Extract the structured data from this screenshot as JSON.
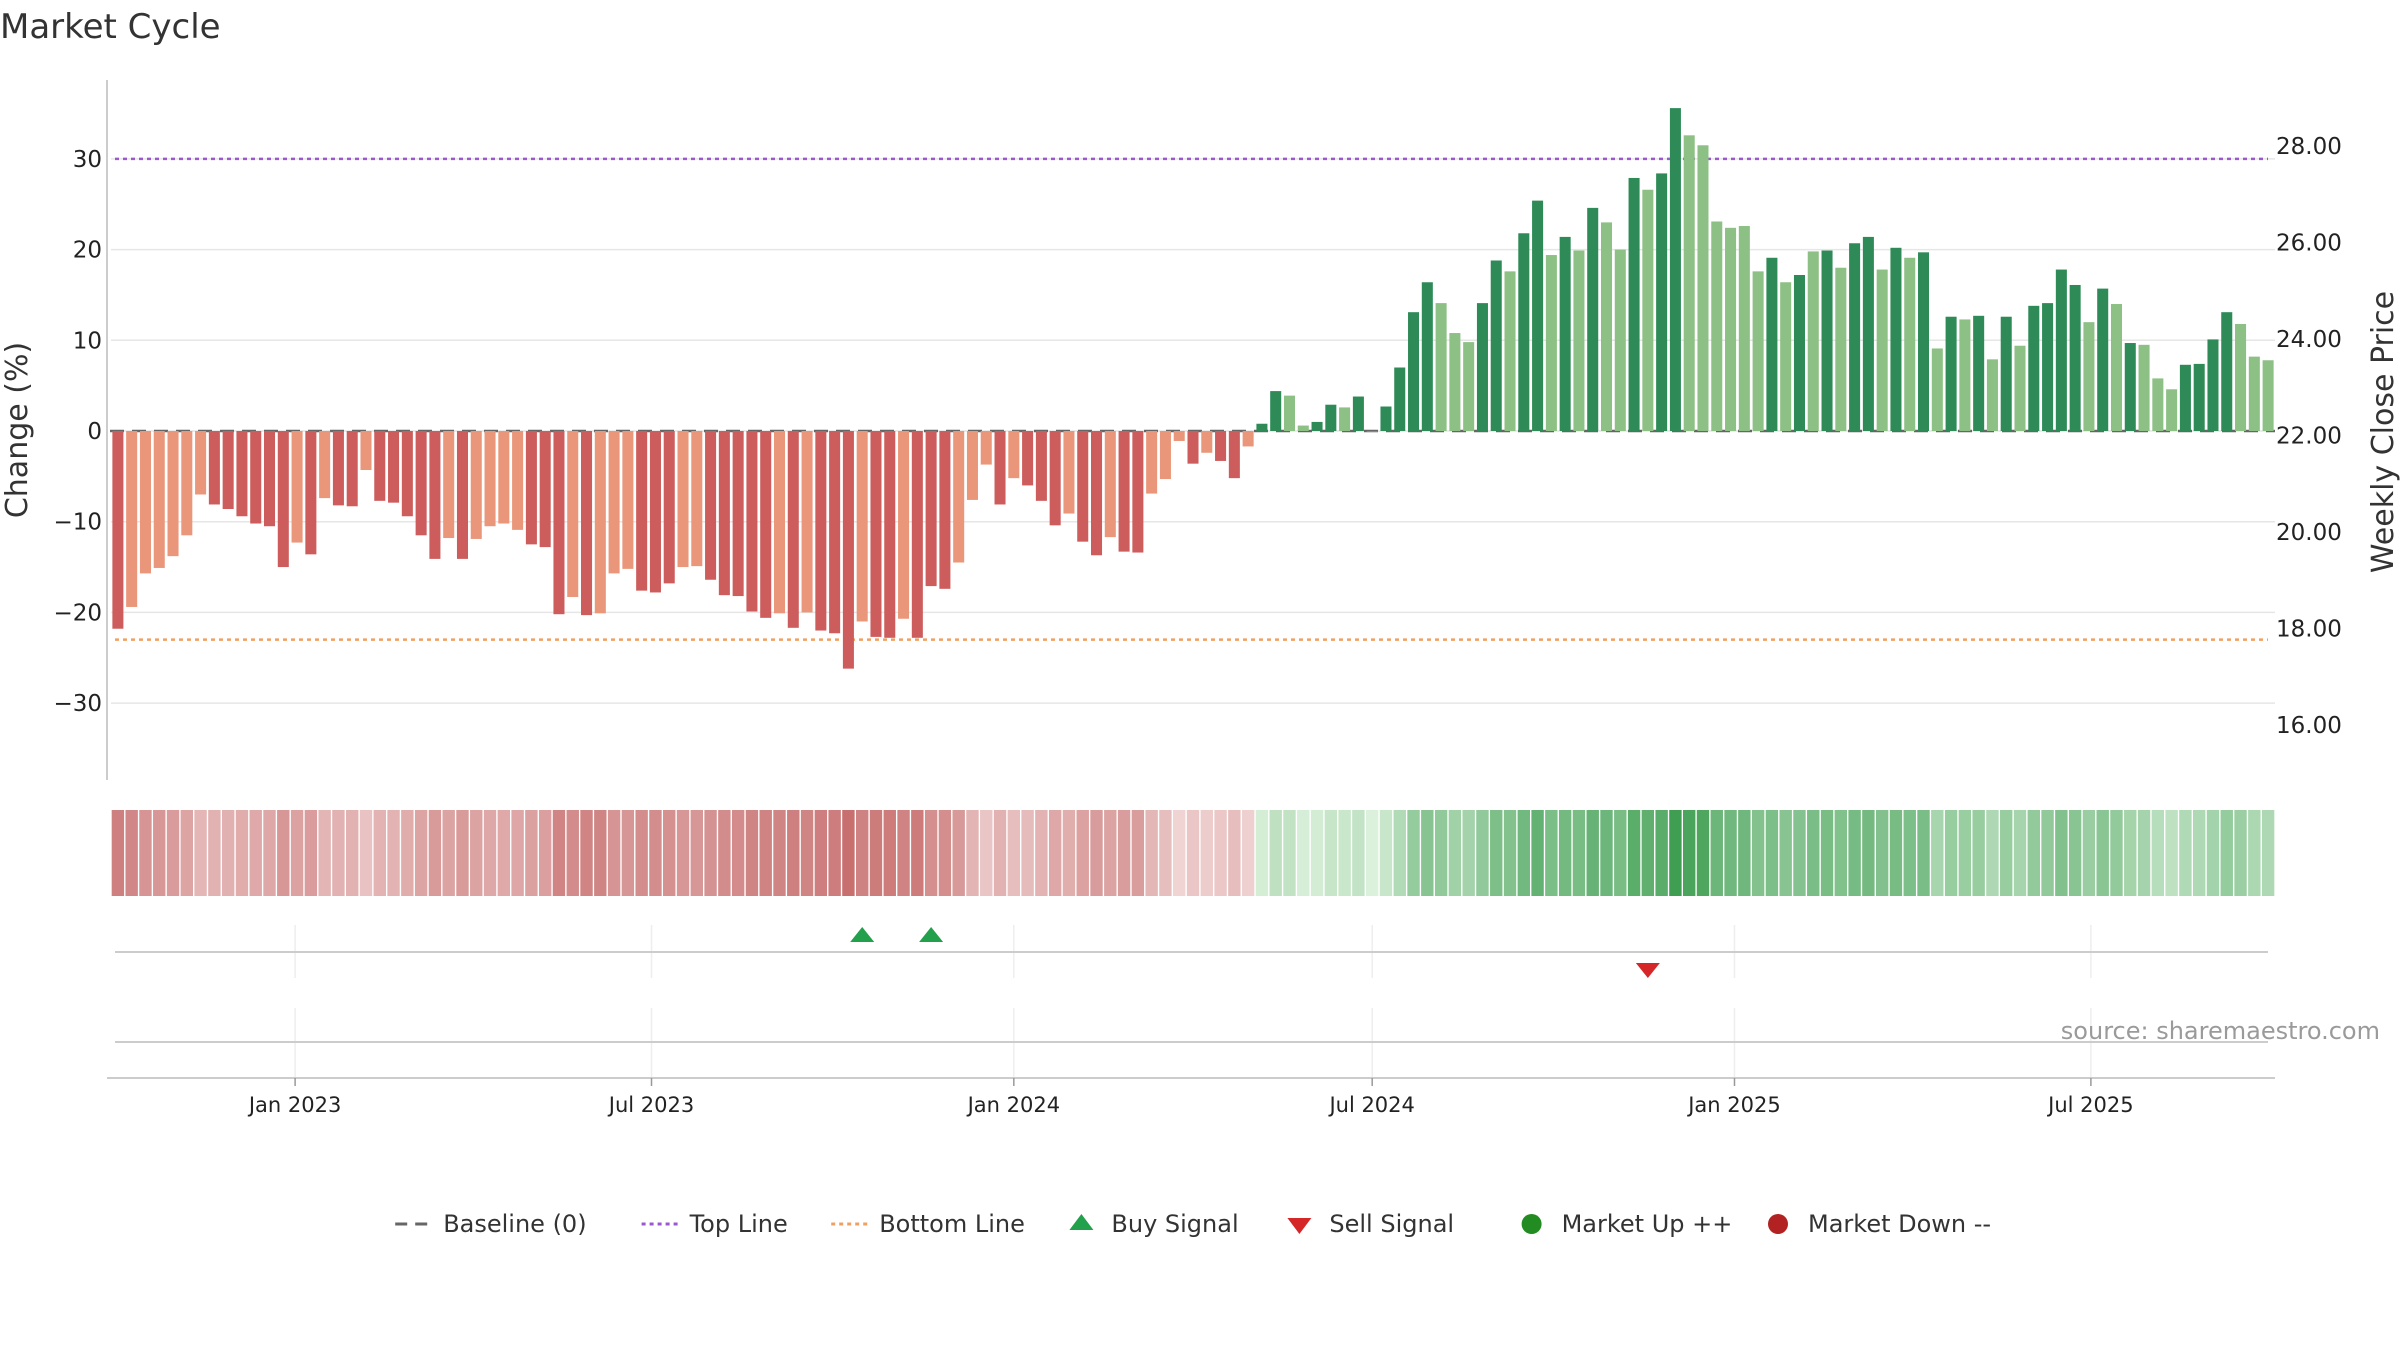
{
  "title": "Market Cycle",
  "source": "source: sharemaestro.com",
  "colors": {
    "baseline": "#666666",
    "top_line": "#9b59d0",
    "bottom_line": "#f0a060",
    "buy": "#22a04b",
    "sell": "#d62728",
    "up_dark": "#2e8b57",
    "up_light": "#8cc084",
    "down_dark": "#cd5c5c",
    "down_light": "#e9967a"
  },
  "legend": [
    {
      "label": "Baseline (0)",
      "symbol": "dash",
      "color": "#666666"
    },
    {
      "label": "Top Line",
      "symbol": "dot",
      "color": "#9b59d0"
    },
    {
      "label": "Bottom Line",
      "symbol": "dot",
      "color": "#f0a060"
    },
    {
      "label": "Buy Signal",
      "symbol": "triangle-up",
      "color": "#22a04b"
    },
    {
      "label": "Sell Signal",
      "symbol": "triangle-down",
      "color": "#d62728"
    },
    {
      "label": "Market Up ++",
      "symbol": "circle",
      "color": "#228b22"
    },
    {
      "label": "Market Down --",
      "symbol": "circle",
      "color": "#b22222"
    }
  ],
  "chart_data": {
    "type": "bar",
    "x_type": "date",
    "x_start": "2022-10-03",
    "x_interval_days": 7,
    "x_ticks": [
      "Jan 2023",
      "Jul 2023",
      "Jan 2024",
      "Jul 2024",
      "Jan 2025",
      "Jul 2025"
    ],
    "y_left": {
      "label": "Change (%)",
      "ticks": [
        30,
        20,
        10,
        0,
        -10,
        -20,
        -30
      ],
      "tick_labels": [
        "30",
        "20",
        "10",
        "0",
        "−10",
        "−20",
        "−30"
      ],
      "range": [
        -38.5,
        38.5
      ]
    },
    "y_right": {
      "label": "Weekly Close Price",
      "ticks": [
        28,
        26,
        24,
        22,
        20,
        18,
        16
      ],
      "tick_labels": [
        "28.00",
        "26.00",
        "24.00",
        "22.00",
        "20.00",
        "18.00",
        "16.00"
      ]
    },
    "top_line": 30,
    "bottom_line": -23,
    "baseline": 0,
    "values": [
      -21.8,
      -19.4,
      -15.7,
      -15.1,
      -13.8,
      -11.5,
      -7.0,
      -8.1,
      -8.6,
      -9.4,
      -10.2,
      -10.5,
      -15.0,
      -12.3,
      -13.6,
      -7.4,
      -8.2,
      -8.3,
      -4.3,
      -7.7,
      -7.9,
      -9.4,
      -11.5,
      -14.1,
      -11.8,
      -14.1,
      -11.9,
      -10.5,
      -10.2,
      -10.9,
      -12.5,
      -12.8,
      -20.2,
      -18.3,
      -20.3,
      -20.1,
      -15.7,
      -15.2,
      -17.6,
      -17.8,
      -16.8,
      -15.0,
      -14.9,
      -16.4,
      -18.1,
      -18.2,
      -19.9,
      -20.6,
      -20.1,
      -21.7,
      -20.0,
      -22.0,
      -22.3,
      -26.2,
      -21.0,
      -22.7,
      -22.8,
      -20.7,
      -22.8,
      -17.1,
      -17.4,
      -14.5,
      -7.6,
      -3.7,
      -8.1,
      -5.2,
      -6.0,
      -7.7,
      -10.4,
      -9.1,
      -12.2,
      -13.7,
      -11.7,
      -13.3,
      -13.4,
      -6.9,
      -5.3,
      -1.1,
      -3.6,
      -2.4,
      -3.3,
      -5.2,
      -1.7,
      0.8,
      4.4,
      3.9,
      0.6,
      1.0,
      2.9,
      2.6,
      3.8,
      0.0,
      2.7,
      7.0,
      13.1,
      16.4,
      14.1,
      10.8,
      9.8,
      14.1,
      18.8,
      17.6,
      21.8,
      25.4,
      19.4,
      21.4,
      19.9,
      24.6,
      23.0,
      20.0,
      27.9,
      26.6,
      28.4,
      35.6,
      32.6,
      31.5,
      23.1,
      22.4,
      22.6,
      17.6,
      19.1,
      16.4,
      17.2,
      19.8,
      19.9,
      18.0,
      20.7,
      21.4,
      17.8,
      20.2,
      19.1,
      19.7,
      9.1,
      12.6,
      12.3,
      12.7,
      7.9,
      12.6,
      9.4,
      13.8,
      14.1,
      17.8,
      16.1,
      12.0,
      15.7,
      14.0,
      9.7,
      9.5,
      5.8,
      4.6,
      7.3,
      7.4,
      10.1,
      13.1,
      11.8,
      8.2,
      7.8
    ],
    "shade": [
      1,
      0,
      0,
      0,
      0,
      0,
      0,
      1,
      1,
      1,
      1,
      1,
      1,
      0,
      1,
      0,
      1,
      1,
      0,
      1,
      1,
      1,
      1,
      1,
      0,
      1,
      0,
      0,
      0,
      0,
      1,
      1,
      1,
      0,
      1,
      0,
      0,
      0,
      1,
      1,
      1,
      0,
      0,
      1,
      1,
      1,
      1,
      1,
      0,
      1,
      0,
      1,
      1,
      1,
      0,
      1,
      1,
      0,
      1,
      1,
      1,
      0,
      0,
      0,
      1,
      0,
      1,
      1,
      1,
      0,
      1,
      1,
      0,
      1,
      1,
      0,
      0,
      0,
      1,
      0,
      1,
      1,
      0,
      1,
      1,
      0,
      0,
      1,
      1,
      0,
      1,
      0,
      1,
      1,
      1,
      1,
      0,
      0,
      0,
      1,
      1,
      0,
      1,
      1,
      0,
      1,
      0,
      1,
      0,
      0,
      1,
      0,
      1,
      1,
      0,
      0,
      0,
      0,
      0,
      0,
      1,
      0,
      1,
      0,
      1,
      0,
      1,
      1,
      0,
      1,
      0,
      1,
      0,
      1,
      0,
      1,
      0,
      1,
      0,
      1,
      1,
      1,
      1,
      0,
      1,
      0,
      1,
      0,
      0,
      0,
      1,
      1,
      1,
      1,
      0,
      0,
      0
    ],
    "buy_signals": [
      "2023-10-16",
      "2023-11-20"
    ],
    "sell_signals": [
      "2024-11-18"
    ],
    "market_up_markers": [],
    "market_down_markers": [],
    "grid": true,
    "legend_position": "bottom"
  }
}
